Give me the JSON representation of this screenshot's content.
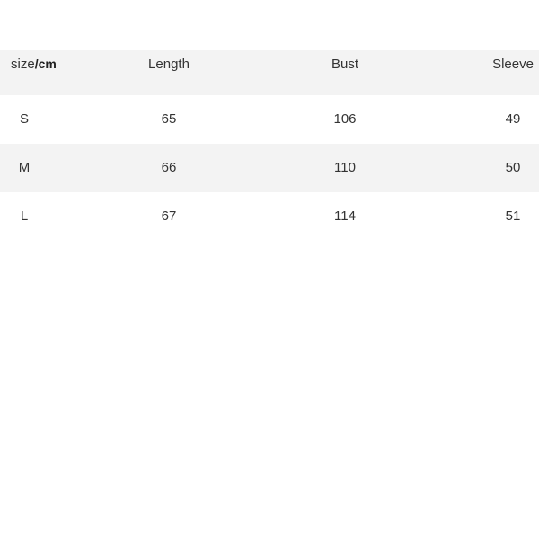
{
  "table": {
    "header": {
      "size_label": "size",
      "size_unit": "/cm",
      "columns": [
        "Length",
        "Bust",
        "Sleeve"
      ]
    },
    "rows": [
      {
        "size": "S",
        "values": [
          "65",
          "106",
          "49"
        ]
      },
      {
        "size": "M",
        "values": [
          "66",
          "110",
          "50"
        ]
      },
      {
        "size": "L",
        "values": [
          "67",
          "114",
          "51"
        ]
      }
    ]
  },
  "colors": {
    "stripe": "#f3f3f3",
    "text": "#333333"
  }
}
